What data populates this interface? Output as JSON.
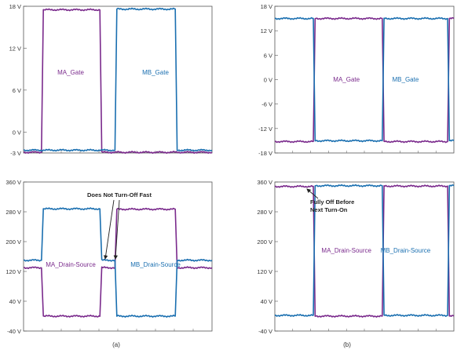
{
  "subfigure_labels": [
    "(a)",
    "(b)"
  ],
  "colors": {
    "ma": "#7a2a8c",
    "mb": "#1a6fb0",
    "frame": "#555555"
  },
  "chart_data": [
    {
      "type": "line",
      "panel": "a-gate",
      "ylim": [
        -3,
        18
      ],
      "yticks": [
        18,
        12,
        6,
        0,
        -3
      ],
      "ytick_labels": [
        "18 V",
        "12 V",
        "6 V",
        "0 V",
        "-3 V"
      ],
      "xlim": [
        0,
        100
      ],
      "grid": false,
      "series": [
        {
          "name": "MA_Gate",
          "x": [
            0,
            9.5,
            10.5,
            40.5,
            41.5,
            100
          ],
          "y": [
            -2.9,
            -2.9,
            17.5,
            17.5,
            -2.9,
            -2.9
          ]
        },
        {
          "name": "MB_Gate",
          "x": [
            0,
            48.5,
            49.5,
            80.5,
            81.5,
            100
          ],
          "y": [
            -2.6,
            -2.6,
            17.6,
            17.6,
            -2.6,
            -2.6
          ]
        }
      ]
    },
    {
      "type": "line",
      "panel": "b-gate",
      "ylim": [
        -18,
        18
      ],
      "yticks": [
        18,
        12,
        6,
        0,
        -6,
        -12,
        -18
      ],
      "ytick_labels": [
        "18 V",
        "12 V",
        "6 V",
        "0 V",
        "-6 V",
        "-12 V",
        "-18 V"
      ],
      "xlim": [
        0,
        100
      ],
      "grid": false,
      "series": [
        {
          "name": "MA_Gate",
          "x": [
            0,
            21.5,
            22.5,
            60,
            61,
            96.5,
            97.5,
            100
          ],
          "y": [
            -15.2,
            -15.2,
            15,
            15,
            -15.2,
            -15.2,
            15,
            15
          ]
        },
        {
          "name": "MB_Gate",
          "x": [
            0,
            21.5,
            22.5,
            60,
            61,
            96.5,
            97.5,
            100
          ],
          "y": [
            15,
            15,
            -15,
            -15,
            15,
            15,
            -15,
            -15
          ]
        }
      ]
    },
    {
      "type": "line",
      "panel": "a-drain-source",
      "ylim": [
        -40,
        360
      ],
      "yticks": [
        360,
        280,
        200,
        120,
        40,
        -40
      ],
      "ytick_labels": [
        "360 V",
        "280 V",
        "200 V",
        "120 V",
        "40 V",
        "-40 V"
      ],
      "xlim": [
        0,
        100
      ],
      "grid": false,
      "annotations": [
        {
          "text": "Does Not Turn-Off Fast"
        }
      ],
      "series": [
        {
          "name": "MA_Drain-Source",
          "x": [
            0,
            9.5,
            10.5,
            40.5,
            41.5,
            48.5,
            49.5,
            80.5,
            81.5,
            100
          ],
          "y": [
            130,
            130,
            0,
            0,
            130,
            130,
            287,
            287,
            130,
            130
          ]
        },
        {
          "name": "MB_Drain-Source",
          "x": [
            0,
            9.5,
            10.5,
            40.5,
            41.5,
            48.5,
            49.5,
            80.5,
            81.5,
            100
          ],
          "y": [
            150,
            150,
            288,
            288,
            150,
            150,
            0,
            0,
            150,
            150
          ]
        }
      ]
    },
    {
      "type": "line",
      "panel": "b-drain-source",
      "ylim": [
        -40,
        360
      ],
      "yticks": [
        360,
        280,
        200,
        120,
        40,
        -40
      ],
      "ytick_labels": [
        "360 V",
        "280 V",
        "200 V",
        "120 V",
        "40 V",
        "-40 V"
      ],
      "xlim": [
        0,
        100
      ],
      "grid": false,
      "annotations": [
        {
          "text": "Fully Off Before Next Turn-On"
        }
      ],
      "series": [
        {
          "name": "MA_Drain-Source",
          "x": [
            0,
            21.5,
            22.5,
            60,
            61,
            96.5,
            97.5,
            100
          ],
          "y": [
            348,
            348,
            0,
            0,
            349,
            349,
            0,
            0
          ]
        },
        {
          "name": "MB_Drain-Source",
          "x": [
            0,
            21.5,
            22.5,
            60,
            61,
            96.5,
            97.5,
            100
          ],
          "y": [
            2,
            2,
            350,
            350,
            2,
            2,
            350,
            350
          ]
        }
      ]
    }
  ]
}
